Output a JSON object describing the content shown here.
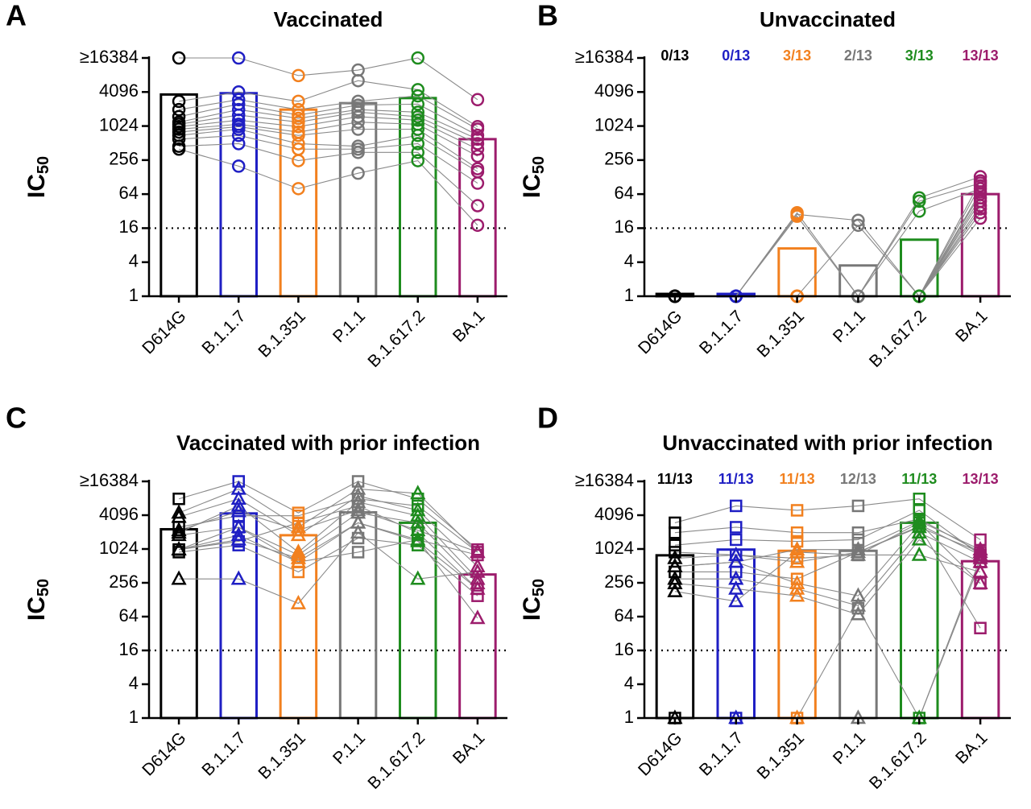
{
  "chart_data": [
    {
      "type": "bar",
      "panel": "A",
      "title": "Vaccinated",
      "ylabel": "IC",
      "ylabel_sub": "50",
      "categories": [
        "D614G",
        "B.1.1.7",
        "B.1.351",
        "P.1.1",
        "B.1.617.2",
        "BA.1"
      ],
      "colors": [
        "#000000",
        "#1f1fc4",
        "#f2801e",
        "#777777",
        "#1e8c1e",
        "#9c1c6c"
      ],
      "values": [
        3700,
        3900,
        2000,
        2600,
        3200,
        600
      ],
      "marker": "circle",
      "points": [
        [
          16384,
          16384,
          8000,
          10000,
          16384,
          3000
        ],
        [
          2800,
          4096,
          2800,
          6500,
          4500,
          1000
        ],
        [
          2000,
          3000,
          2000,
          2800,
          3500,
          900
        ],
        [
          1500,
          2500,
          1600,
          2400,
          2500,
          700
        ],
        [
          1200,
          2000,
          1400,
          2000,
          1800,
          600
        ],
        [
          1100,
          1600,
          1200,
          1800,
          1500,
          500
        ],
        [
          1000,
          1300,
          1000,
          1500,
          1300,
          400
        ],
        [
          900,
          1100,
          800,
          1200,
          1100,
          300
        ],
        [
          800,
          1000,
          700,
          900,
          900,
          180
        ],
        [
          700,
          900,
          500,
          450,
          700,
          160
        ],
        [
          600,
          700,
          400,
          400,
          500,
          100
        ],
        [
          450,
          500,
          250,
          350,
          350,
          40
        ],
        [
          400,
          200,
          80,
          150,
          250,
          18
        ]
      ],
      "ylim": [
        1,
        16384
      ],
      "yticks": [
        1,
        4,
        16,
        64,
        256,
        1024,
        4096,
        {
          "value": 16384,
          "label": "≥16384"
        }
      ],
      "log_scale": true,
      "log_base": 2,
      "threshold": 16
    },
    {
      "type": "bar",
      "panel": "B",
      "title": "Unvaccinated",
      "ylabel": "IC",
      "ylabel_sub": "50",
      "categories": [
        "D614G",
        "B.1.1.7",
        "B.1.351",
        "P.1.1",
        "B.1.617.2",
        "BA.1"
      ],
      "colors": [
        "#000000",
        "#1f1fc4",
        "#f2801e",
        "#777777",
        "#1e8c1e",
        "#9c1c6c"
      ],
      "values": [
        1.1,
        1.1,
        7,
        3.5,
        10,
        64
      ],
      "annotations": [
        "0/13",
        "0/13",
        "3/13",
        "2/13",
        "3/13",
        "13/13"
      ],
      "marker": "circle",
      "points": [
        [
          1,
          1,
          30,
          1,
          55,
          130
        ],
        [
          1,
          1,
          28,
          22,
          1,
          110
        ],
        [
          1,
          1,
          26,
          1,
          48,
          100
        ],
        [
          1,
          1,
          1,
          18,
          1,
          90
        ],
        [
          1,
          1,
          1,
          1,
          32,
          80
        ],
        [
          1,
          1,
          1,
          1,
          1,
          70
        ],
        [
          1,
          1,
          1,
          1,
          1,
          64
        ],
        [
          1,
          1,
          1,
          1,
          1,
          55
        ],
        [
          1,
          1,
          1,
          1,
          1,
          48
        ],
        [
          1,
          1,
          1,
          1,
          1,
          40
        ],
        [
          1,
          1,
          1,
          1,
          1,
          35
        ],
        [
          1,
          1,
          1,
          1,
          1,
          30
        ],
        [
          1,
          1,
          1,
          1,
          1,
          24
        ]
      ],
      "ylim": [
        1,
        16384
      ],
      "yticks": [
        1,
        4,
        16,
        64,
        256,
        1024,
        4096,
        {
          "value": 16384,
          "label": "≥16384"
        }
      ],
      "log_scale": true,
      "log_base": 2,
      "threshold": 16
    },
    {
      "type": "bar",
      "panel": "C",
      "title": "Vaccinated with prior infection",
      "ylabel": "IC",
      "ylabel_sub": "50",
      "categories": [
        "D614G",
        "B.1.1.7",
        "B.1.351",
        "P.1.1",
        "B.1.617.2",
        "BA.1"
      ],
      "colors": [
        "#000000",
        "#1f1fc4",
        "#f2801e",
        "#777777",
        "#1e8c1e",
        "#9c1c6c"
      ],
      "values": [
        2300,
        4400,
        1800,
        4600,
        3000,
        360
      ],
      "markers": [
        "square",
        "square",
        "square",
        "square",
        "square",
        "triangle",
        "triangle",
        "triangle",
        "triangle",
        "triangle",
        "triangle",
        "triangle",
        "triangle"
      ],
      "points": [
        [
          8000,
          16384,
          4500,
          16384,
          8000,
          1000
        ],
        [
          1000,
          2500,
          600,
          900,
          1500,
          800
        ],
        [
          900,
          1200,
          400,
          1600,
          1200,
          150
        ],
        [
          1000,
          1400,
          3000,
          6000,
          2000,
          200
        ],
        [
          2500,
          4000,
          4000,
          8000,
          6000,
          900
        ],
        [
          4500,
          12000,
          2500,
          12000,
          10000,
          900
        ],
        [
          3800,
          8000,
          1800,
          9000,
          5000,
          500
        ],
        [
          2000,
          6000,
          900,
          7000,
          4000,
          300
        ],
        [
          1800,
          2500,
          800,
          4500,
          3000,
          250
        ],
        [
          1000,
          1800,
          600,
          3000,
          1500,
          60
        ],
        [
          300,
          300,
          110,
          2000,
          300,
          400
        ],
        [
          1000,
          1500,
          700,
          3000,
          1400,
          200
        ],
        [
          2200,
          4800,
          2200,
          5000,
          2200,
          900
        ]
      ],
      "ylim": [
        1,
        16384
      ],
      "yticks": [
        1,
        4,
        16,
        64,
        256,
        1024,
        4096,
        {
          "value": 16384,
          "label": "≥16384"
        }
      ],
      "log_scale": true,
      "log_base": 2,
      "threshold": 16
    },
    {
      "type": "bar",
      "panel": "D",
      "title": "Unvaccinated with prior infection",
      "ylabel": "IC",
      "ylabel_sub": "50",
      "categories": [
        "D614G",
        "B.1.1.7",
        "B.1.351",
        "P.1.1",
        "B.1.617.2",
        "BA.1"
      ],
      "colors": [
        "#000000",
        "#1f1fc4",
        "#f2801e",
        "#777777",
        "#1e8c1e",
        "#9c1c6c"
      ],
      "values": [
        790,
        1000,
        950,
        950,
        3000,
        620
      ],
      "annotations": [
        "11/13",
        "11/13",
        "11/13",
        "12/13",
        "11/13",
        "13/13"
      ],
      "markers": [
        "square",
        "square",
        "square",
        "square",
        "square",
        "square",
        "triangle",
        "triangle",
        "triangle",
        "triangle",
        "triangle",
        "triangle",
        "triangle"
      ],
      "points": [
        [
          3000,
          6000,
          5000,
          6000,
          8000,
          1500
        ],
        [
          2000,
          2500,
          2000,
          2000,
          3500,
          900
        ],
        [
          1,
          1,
          1,
          90,
          1,
          600
        ],
        [
          1200,
          1500,
          1400,
          1500,
          5000,
          800
        ],
        [
          900,
          800,
          700,
          800,
          3000,
          250
        ],
        [
          400,
          400,
          300,
          900,
          2600,
          40
        ],
        [
          1,
          1,
          1,
          1,
          1,
          700
        ],
        [
          700,
          800,
          600,
          900,
          2500,
          900
        ],
        [
          500,
          600,
          250,
          150,
          2800,
          800
        ],
        [
          300,
          300,
          200,
          100,
          2000,
          600
        ],
        [
          250,
          200,
          150,
          70,
          1500,
          250
        ],
        [
          180,
          120,
          900,
          800,
          800,
          400
        ],
        [
          500,
          600,
          1000,
          1000,
          3200,
          1000
        ]
      ],
      "ylim": [
        1,
        16384
      ],
      "yticks": [
        1,
        4,
        16,
        64,
        256,
        1024,
        4096,
        {
          "value": 16384,
          "label": "≥16384"
        }
      ],
      "log_scale": true,
      "log_base": 2,
      "threshold": 16
    }
  ]
}
